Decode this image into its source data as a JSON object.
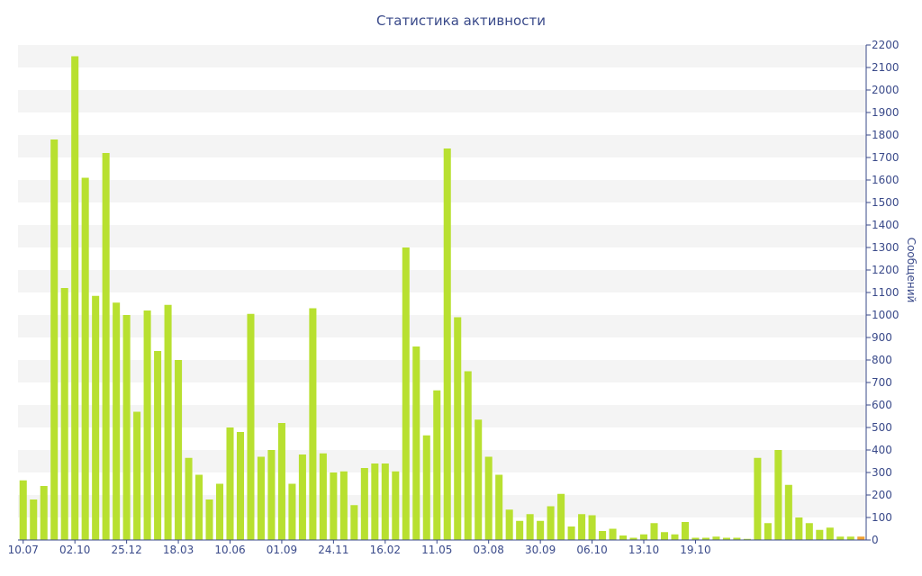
{
  "chart_data": {
    "type": "bar",
    "title": "Статистика активности",
    "ylabel": "Сообщений",
    "ylim": [
      0,
      2200
    ],
    "ytick_step": 100,
    "x_tick_labels": [
      {
        "index": 0,
        "label": "10.07"
      },
      {
        "index": 5,
        "label": "02.10"
      },
      {
        "index": 10,
        "label": "25.12"
      },
      {
        "index": 15,
        "label": "18.03"
      },
      {
        "index": 20,
        "label": "10.06"
      },
      {
        "index": 25,
        "label": "01.09"
      },
      {
        "index": 30,
        "label": "24.11"
      },
      {
        "index": 35,
        "label": "16.02"
      },
      {
        "index": 40,
        "label": "11.05"
      },
      {
        "index": 45,
        "label": "03.08"
      },
      {
        "index": 50,
        "label": "30.09"
      },
      {
        "index": 55,
        "label": "06.10"
      },
      {
        "index": 60,
        "label": "13.10"
      },
      {
        "index": 65,
        "label": "19.10"
      }
    ],
    "values": [
      265,
      180,
      240,
      1780,
      1120,
      2150,
      1610,
      1085,
      1720,
      1055,
      1000,
      570,
      1020,
      840,
      1045,
      800,
      365,
      290,
      180,
      250,
      500,
      480,
      1005,
      370,
      400,
      520,
      250,
      380,
      1030,
      385,
      300,
      305,
      155,
      320,
      340,
      340,
      305,
      1300,
      860,
      465,
      665,
      1740,
      990,
      750,
      535,
      370,
      290,
      135,
      85,
      115,
      85,
      150,
      205,
      60,
      115,
      110,
      40,
      50,
      20,
      10,
      25,
      75,
      35,
      25,
      80,
      10,
      10,
      15,
      10,
      10,
      5,
      365,
      75,
      400,
      245,
      100,
      75,
      45,
      55,
      15,
      15,
      15
    ],
    "last_bar_color": "#f0a030",
    "bar_color": "#b8e030",
    "band_color": "#f4f4f4",
    "grid": "horizontal bands",
    "legend": "none"
  }
}
